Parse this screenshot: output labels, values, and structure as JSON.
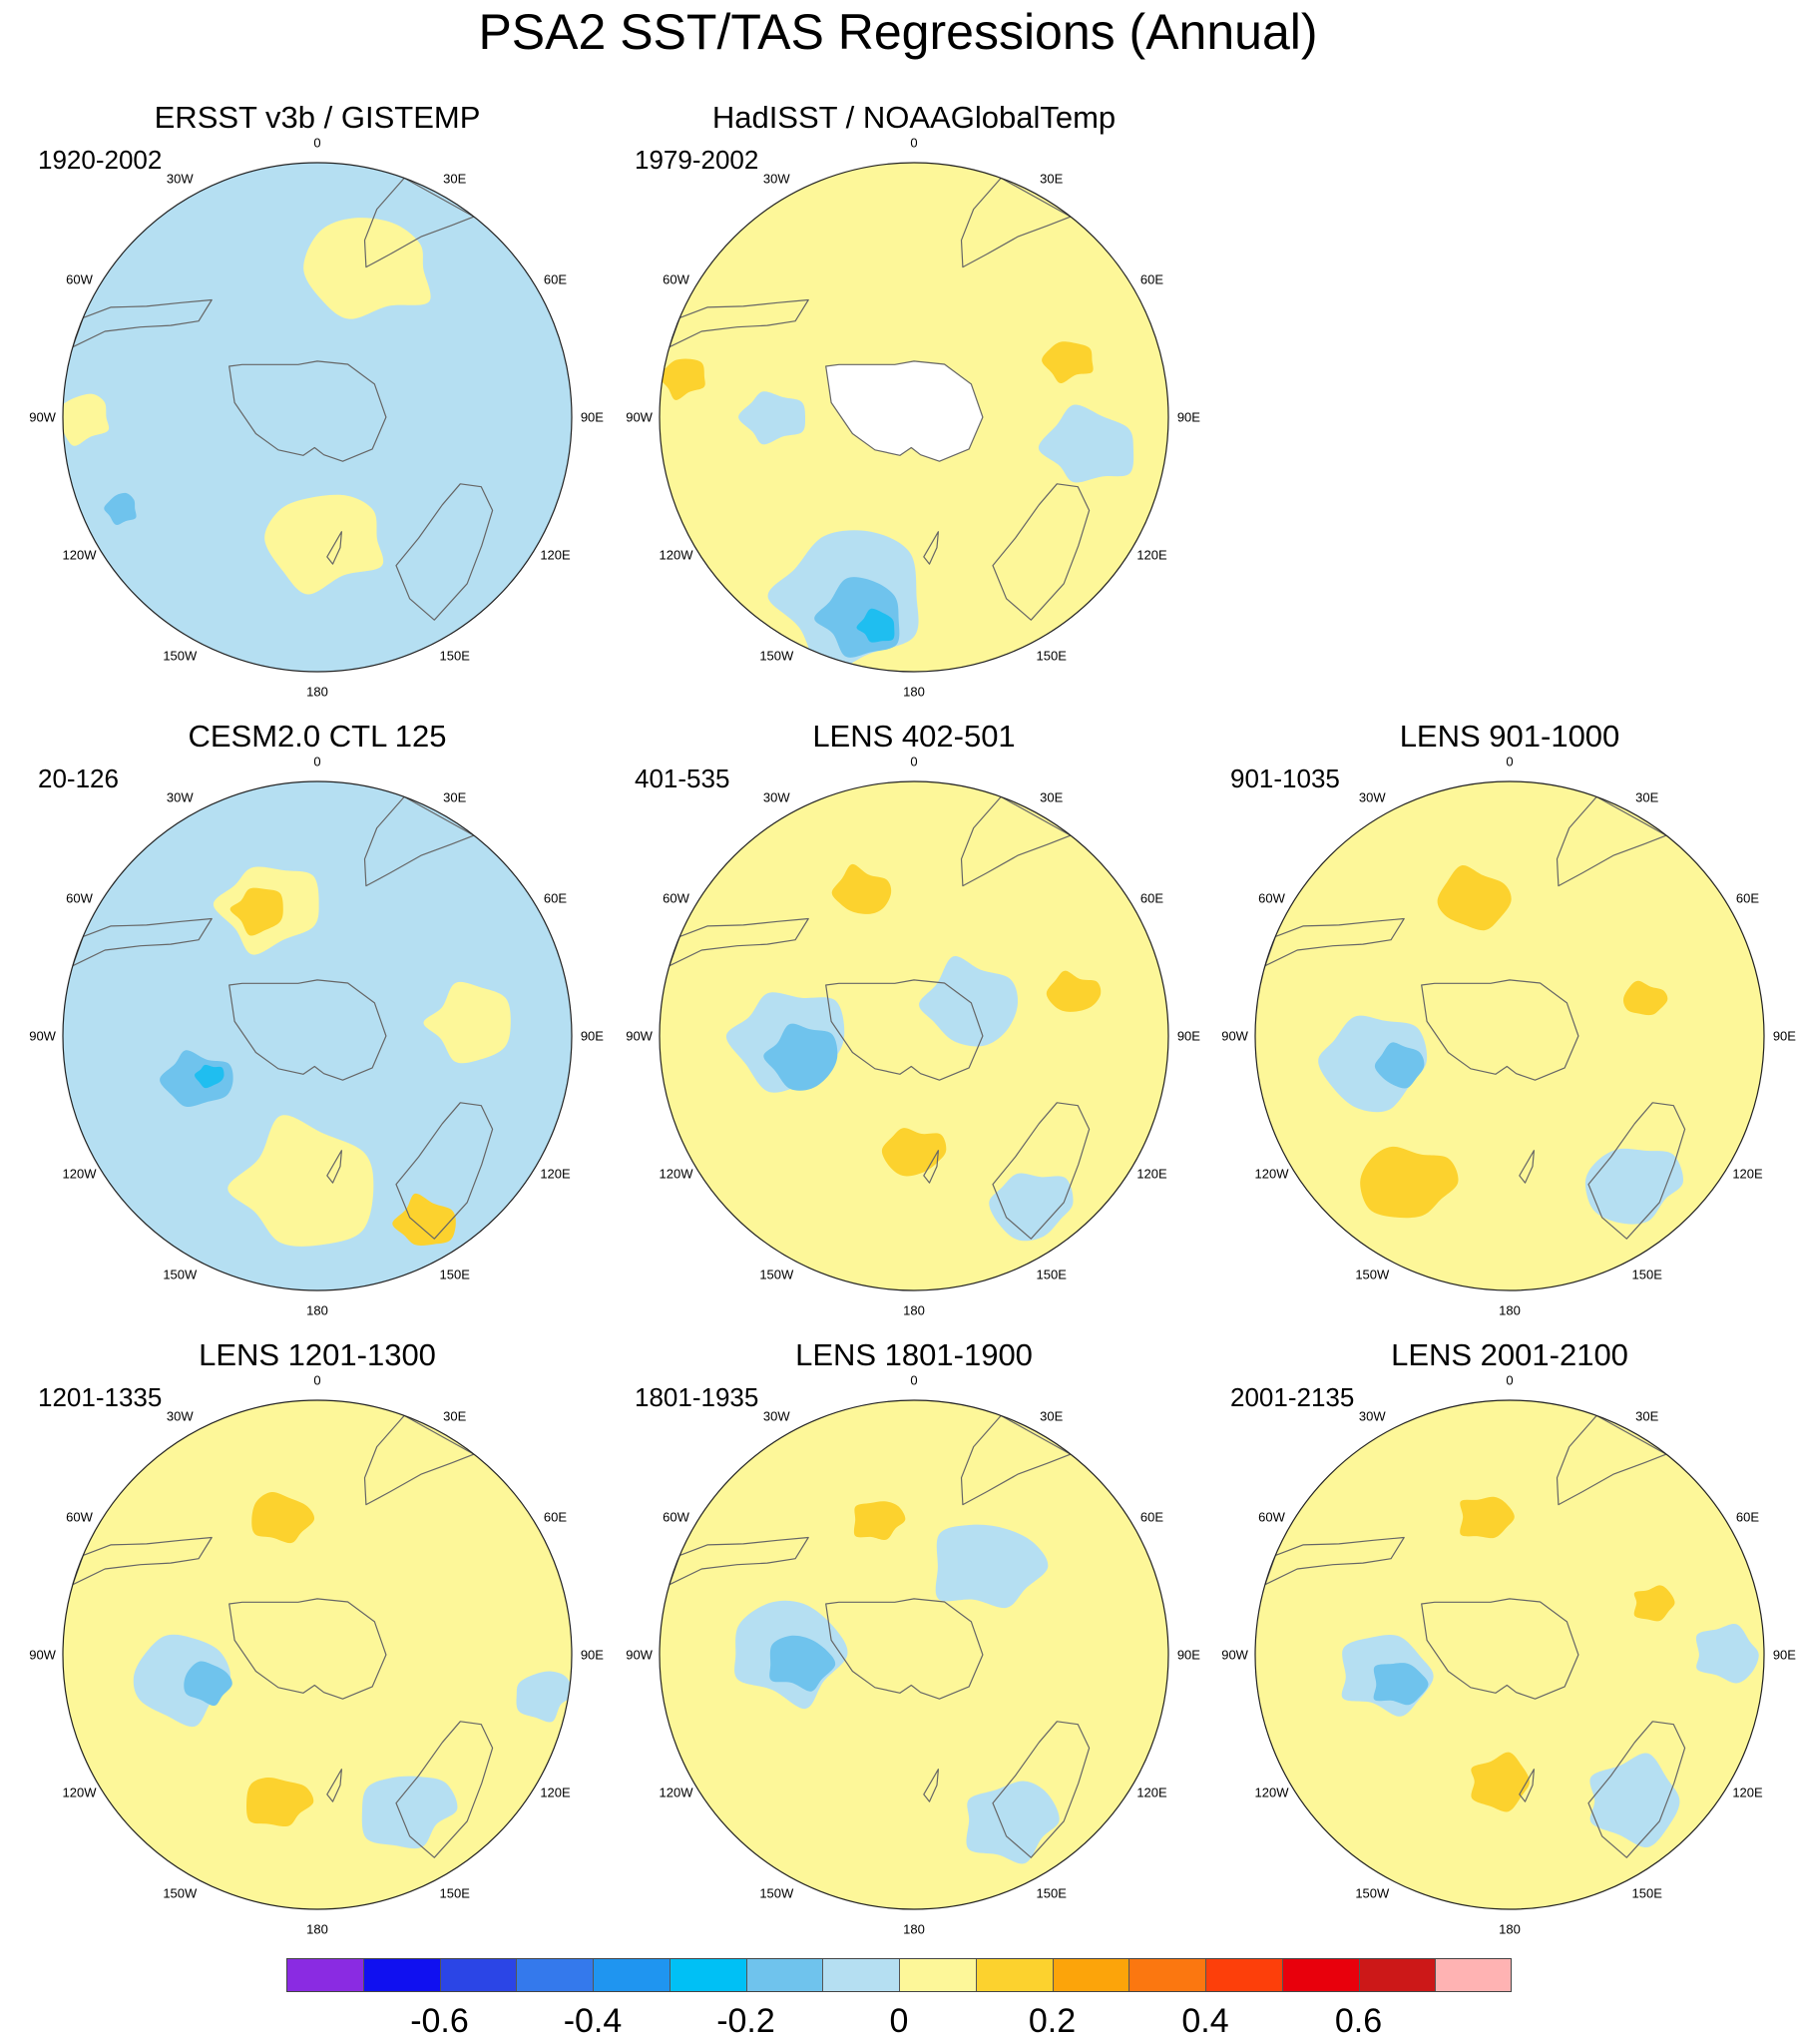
{
  "title": "PSA2 SST/TAS Regressions (Annual)",
  "longitude_labels": [
    "0",
    "30E",
    "60E",
    "90E",
    "120E",
    "150E",
    "180",
    "150W",
    "120W",
    "90W",
    "60W",
    "30W"
  ],
  "panels": [
    {
      "title": "ERSST v3b / GISTEMP",
      "years": "1920-2002",
      "grid_pos": [
        0,
        0
      ],
      "base_color": "#b5dff2",
      "land_masked": false,
      "patches": [
        {
          "color": "#fdf799",
          "lon": 20,
          "lat_frac": 0.62,
          "size": 0.28
        },
        {
          "color": "#fdf799",
          "lon": 175,
          "lat_frac": 0.48,
          "size": 0.26
        },
        {
          "color": "#fdf799",
          "lon": 270,
          "lat_frac": 0.92,
          "size": 0.12
        },
        {
          "color": "#6fc3ed",
          "lon": 245,
          "lat_frac": 0.85,
          "size": 0.07
        }
      ]
    },
    {
      "title": "HadISST / NOAAGlobalTemp",
      "years": "1979-2002",
      "grid_pos": [
        1,
        0
      ],
      "base_color": "#fdf799",
      "land_masked": true,
      "patches": [
        {
          "color": "#fcd22e",
          "lon": 70,
          "lat_frac": 0.65,
          "size": 0.11
        },
        {
          "color": "#fcd22e",
          "lon": 280,
          "lat_frac": 0.92,
          "size": 0.1
        },
        {
          "color": "#b5dff2",
          "lon": 200,
          "lat_frac": 0.75,
          "size": 0.32
        },
        {
          "color": "#6fc3ed",
          "lon": 195,
          "lat_frac": 0.82,
          "size": 0.18
        },
        {
          "color": "#1fbef0",
          "lon": 190,
          "lat_frac": 0.84,
          "size": 0.08
        },
        {
          "color": "#b5dff2",
          "lon": 100,
          "lat_frac": 0.7,
          "size": 0.2
        },
        {
          "color": "#b5dff2",
          "lon": 270,
          "lat_frac": 0.55,
          "size": 0.14
        }
      ]
    },
    {
      "title": "CESM2.0 CTL 125",
      "years": "20-126",
      "grid_pos": [
        0,
        1
      ],
      "base_color": "#b5dff2",
      "land_masked": false,
      "patches": [
        {
          "color": "#fdf799",
          "lon": 340,
          "lat_frac": 0.55,
          "size": 0.22
        },
        {
          "color": "#fcd22e",
          "lon": 335,
          "lat_frac": 0.55,
          "size": 0.11
        },
        {
          "color": "#fdf799",
          "lon": 85,
          "lat_frac": 0.6,
          "size": 0.18
        },
        {
          "color": "#fdf799",
          "lon": 185,
          "lat_frac": 0.6,
          "size": 0.3
        },
        {
          "color": "#fcd22e",
          "lon": 150,
          "lat_frac": 0.85,
          "size": 0.13
        },
        {
          "color": "#6fc3ed",
          "lon": 250,
          "lat_frac": 0.5,
          "size": 0.15
        },
        {
          "color": "#1fbef0",
          "lon": 250,
          "lat_frac": 0.45,
          "size": 0.06
        }
      ]
    },
    {
      "title": "LENS 402-501",
      "years": "401-535",
      "grid_pos": [
        1,
        1
      ],
      "base_color": "#fdf799",
      "land_masked": false,
      "patches": [
        {
          "color": "#b5dff2",
          "lon": 270,
          "lat_frac": 0.5,
          "size": 0.24
        },
        {
          "color": "#6fc3ed",
          "lon": 260,
          "lat_frac": 0.45,
          "size": 0.15
        },
        {
          "color": "#b5dff2",
          "lon": 60,
          "lat_frac": 0.25,
          "size": 0.2
        },
        {
          "color": "#fcd22e",
          "lon": 340,
          "lat_frac": 0.6,
          "size": 0.12
        },
        {
          "color": "#fcd22e",
          "lon": 75,
          "lat_frac": 0.65,
          "size": 0.11
        },
        {
          "color": "#fcd22e",
          "lon": 180,
          "lat_frac": 0.45,
          "size": 0.13
        },
        {
          "color": "#b5dff2",
          "lon": 145,
          "lat_frac": 0.8,
          "size": 0.17
        }
      ]
    },
    {
      "title": "LENS 901-1000",
      "years": "901-1035",
      "grid_pos": [
        2,
        1
      ],
      "base_color": "#fdf799",
      "land_masked": false,
      "patches": [
        {
          "color": "#b5dff2",
          "lon": 260,
          "lat_frac": 0.55,
          "size": 0.22
        },
        {
          "color": "#6fc3ed",
          "lon": 255,
          "lat_frac": 0.45,
          "size": 0.1
        },
        {
          "color": "#fcd22e",
          "lon": 345,
          "lat_frac": 0.55,
          "size": 0.15
        },
        {
          "color": "#fcd22e",
          "lon": 75,
          "lat_frac": 0.55,
          "size": 0.09
        },
        {
          "color": "#fcd22e",
          "lon": 215,
          "lat_frac": 0.7,
          "size": 0.2
        },
        {
          "color": "#b5dff2",
          "lon": 140,
          "lat_frac": 0.75,
          "size": 0.2
        }
      ]
    },
    {
      "title": "LENS 1201-1300",
      "years": "1201-1335",
      "grid_pos": [
        0,
        2
      ],
      "base_color": "#fdf799",
      "land_masked": false,
      "patches": [
        {
          "color": "#b5dff2",
          "lon": 260,
          "lat_frac": 0.55,
          "size": 0.2
        },
        {
          "color": "#6fc3ed",
          "lon": 255,
          "lat_frac": 0.45,
          "size": 0.1
        },
        {
          "color": "#fcd22e",
          "lon": 345,
          "lat_frac": 0.55,
          "size": 0.13
        },
        {
          "color": "#fcd22e",
          "lon": 195,
          "lat_frac": 0.6,
          "size": 0.14
        },
        {
          "color": "#b5dff2",
          "lon": 150,
          "lat_frac": 0.7,
          "size": 0.2
        },
        {
          "color": "#b5dff2",
          "lon": 100,
          "lat_frac": 0.9,
          "size": 0.12
        }
      ]
    },
    {
      "title": "LENS 1801-1900",
      "years": "1801-1935",
      "grid_pos": [
        1,
        2
      ],
      "base_color": "#fdf799",
      "land_masked": false,
      "patches": [
        {
          "color": "#b5dff2",
          "lon": 270,
          "lat_frac": 0.5,
          "size": 0.24
        },
        {
          "color": "#6fc3ed",
          "lon": 265,
          "lat_frac": 0.45,
          "size": 0.14
        },
        {
          "color": "#b5dff2",
          "lon": 40,
          "lat_frac": 0.45,
          "size": 0.24
        },
        {
          "color": "#fcd22e",
          "lon": 345,
          "lat_frac": 0.55,
          "size": 0.11
        },
        {
          "color": "#b5dff2",
          "lon": 150,
          "lat_frac": 0.75,
          "size": 0.2
        }
      ]
    },
    {
      "title": "LENS 2001-2100",
      "years": "2001-2135",
      "grid_pos": [
        2,
        2
      ],
      "base_color": "#fdf799",
      "land_masked": false,
      "patches": [
        {
          "color": "#b5dff2",
          "lon": 260,
          "lat_frac": 0.5,
          "size": 0.2
        },
        {
          "color": "#6fc3ed",
          "lon": 255,
          "lat_frac": 0.45,
          "size": 0.12
        },
        {
          "color": "#fcd22e",
          "lon": 350,
          "lat_frac": 0.55,
          "size": 0.12
        },
        {
          "color": "#fcd22e",
          "lon": 70,
          "lat_frac": 0.6,
          "size": 0.09
        },
        {
          "color": "#fcd22e",
          "lon": 185,
          "lat_frac": 0.5,
          "size": 0.13
        },
        {
          "color": "#b5dff2",
          "lon": 140,
          "lat_frac": 0.75,
          "size": 0.2
        },
        {
          "color": "#b5dff2",
          "lon": 90,
          "lat_frac": 0.85,
          "size": 0.14
        }
      ]
    }
  ],
  "colorbar": {
    "colors": [
      "#8a2be2",
      "#1010f0",
      "#2b45e6",
      "#3479ec",
      "#1f95f0",
      "#00c0f5",
      "#6fc3ed",
      "#b5dff2",
      "#fdf799",
      "#fcd22e",
      "#fca40a",
      "#fb7710",
      "#fd3f0a",
      "#e8000c",
      "#cc1818",
      "#ffb3b3"
    ],
    "tick_labels": [
      "-0.6",
      "-0.4",
      "-0.2",
      "0",
      "0.2",
      "0.4",
      "0.6"
    ]
  }
}
